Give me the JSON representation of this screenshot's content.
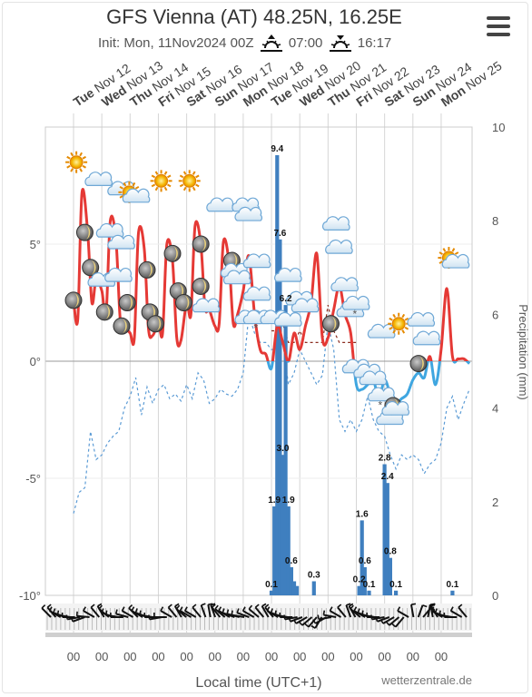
{
  "header": {
    "title": "GFS Vienna (AT) 48.25N, 16.25E",
    "init": "Init: Mon, 11Nov2024 00Z",
    "sunrise": "07:00",
    "sunset": "16:17"
  },
  "footer": {
    "xlabel": "Local time (UTC+1)",
    "credit": "wetterzentrale.de"
  },
  "colors": {
    "temp_warm": "#e53935",
    "temp_cold": "#3fa6e0",
    "precip": "#3f7fbf",
    "dewpoint": "#5b9bd5",
    "dewpoint_warm": "#8b2c1f"
  },
  "icons": [
    "sun-icon",
    "cloud-icon",
    "partly-cloudy-icon",
    "moon-icon",
    "snow-icon",
    "wind-barb-icon",
    "menu-icon"
  ],
  "chart_data": {
    "type": "line",
    "title": "GFS Vienna (AT) 48.25N, 16.25E",
    "xlabel": "Local time (UTC+1)",
    "ylabel_left": "",
    "ylabel_right": "Precipitation (mm)",
    "ylim_left": [
      -10,
      10
    ],
    "ylim_right": [
      0,
      10
    ],
    "yticks_left": [
      "5°",
      "0°",
      "-5°",
      "-10°"
    ],
    "yticks_right": [
      "10",
      "8",
      "6",
      "4",
      "2",
      "0"
    ],
    "days": [
      {
        "dow": "Tue",
        "date": "Nov 12"
      },
      {
        "dow": "Wed",
        "date": "Nov 13"
      },
      {
        "dow": "Thu",
        "date": "Nov 14"
      },
      {
        "dow": "Fri",
        "date": "Nov 15"
      },
      {
        "dow": "Sat",
        "date": "Nov 16"
      },
      {
        "dow": "Sun",
        "date": "Nov 17"
      },
      {
        "dow": "Mon",
        "date": "Nov 18"
      },
      {
        "dow": "Tue",
        "date": "Nov 19"
      },
      {
        "dow": "Wed",
        "date": "Nov 20"
      },
      {
        "dow": "Thu",
        "date": "Nov 21"
      },
      {
        "dow": "Fri",
        "date": "Nov 22"
      },
      {
        "dow": "Sat",
        "date": "Nov 23"
      },
      {
        "dow": "Sun",
        "date": "Nov 24"
      },
      {
        "dow": "Mon",
        "date": "Nov 25"
      }
    ],
    "x_tick_label": "00",
    "series": [
      {
        "name": "Temperature",
        "x_day": [
          0.0,
          0.15,
          0.3,
          0.5,
          0.65,
          0.8,
          1.0,
          1.15,
          1.3,
          1.5,
          1.65,
          1.8,
          2.0,
          2.15,
          2.3,
          2.5,
          2.65,
          2.8,
          3.0,
          3.15,
          3.3,
          3.5,
          3.65,
          3.8,
          4.0,
          4.15,
          4.3,
          4.5,
          4.65,
          4.8,
          5.0,
          5.15,
          5.3,
          5.5,
          5.65,
          5.8,
          6.0,
          6.2,
          6.4,
          6.6,
          6.8,
          7.0,
          7.2,
          7.4,
          7.6,
          7.8,
          8.0,
          8.2,
          8.4,
          8.6,
          8.8,
          9.0,
          9.2,
          9.4,
          9.6,
          9.8,
          10.0,
          10.2,
          10.4,
          10.6,
          10.8,
          11.0,
          11.2,
          11.4,
          11.6,
          11.8,
          12.0,
          12.2,
          12.4,
          12.6,
          12.8,
          13.0,
          13.2,
          13.4,
          13.6,
          13.8,
          14.0
        ],
        "values": [
          2.6,
          1.8,
          7.2,
          5.5,
          2.5,
          3.5,
          3.0,
          2.0,
          6.0,
          5.2,
          1.8,
          1.5,
          1.2,
          1.0,
          5.5,
          4.8,
          1.4,
          1.1,
          1.6,
          1.2,
          5.0,
          4.3,
          1.0,
          0.9,
          2.5,
          2.0,
          5.8,
          5.0,
          2.3,
          2.2,
          1.5,
          1.6,
          5.1,
          4.2,
          1.6,
          2.0,
          3.0,
          4.5,
          2.0,
          0.5,
          0.3,
          -0.3,
          1.5,
          0.8,
          0.0,
          1.2,
          0.5,
          1.5,
          2.5,
          4.6,
          1.0,
          1.0,
          2.2,
          3.2,
          2.0,
          1.2,
          -1.0,
          -1.2,
          -1.0,
          -0.8,
          -1.6,
          -0.8,
          -1.4,
          -1.8,
          -1.6,
          -1.4,
          -0.8,
          -0.5,
          -0.7,
          0.2,
          -1.0,
          0.5,
          3.1,
          0.2,
          0.1,
          0.1,
          -0.1
        ]
      },
      {
        "name": "Dew point",
        "x_day": [
          0.0,
          0.2,
          0.4,
          0.6,
          0.8,
          1.0,
          1.2,
          1.4,
          1.6,
          1.8,
          2.0,
          2.2,
          2.4,
          2.6,
          2.8,
          3.0,
          3.2,
          3.4,
          3.6,
          3.8,
          4.0,
          4.2,
          4.4,
          4.6,
          4.8,
          5.0,
          5.2,
          5.4,
          5.6,
          5.8,
          6.0,
          6.2,
          6.4,
          6.6,
          6.8,
          7.0,
          7.2,
          7.4,
          7.6,
          7.8,
          8.0,
          8.2,
          8.4,
          8.6,
          8.8,
          9.0,
          9.2,
          9.4,
          9.6,
          9.8,
          10.0,
          10.2,
          10.4,
          10.6,
          10.8,
          11.0,
          11.2,
          11.4,
          11.6,
          11.8,
          12.0,
          12.2,
          12.4,
          12.6,
          12.8,
          13.0,
          13.2,
          13.4,
          13.6,
          13.8,
          14.0
        ],
        "values": [
          -6.5,
          -5.6,
          -5.4,
          -3.0,
          -4.2,
          -4.0,
          -3.5,
          -3.2,
          -3.0,
          -2.0,
          -1.5,
          -0.7,
          -2.3,
          -1.1,
          -1.8,
          -1.2,
          -1.0,
          -1.6,
          -1.4,
          -1.7,
          -1.0,
          -1.6,
          -0.5,
          -0.8,
          -1.8,
          -1.6,
          -1.2,
          -1.4,
          -1.5,
          -1.2,
          -0.5,
          2.0,
          1.2,
          0.8,
          0.8,
          0.5,
          0.5,
          0.8,
          -1.0,
          -0.5,
          0.5,
          0.0,
          -0.5,
          -1.0,
          -0.6,
          1.6,
          0.5,
          -2.5,
          -3.0,
          -2.5,
          -3.0,
          -2.5,
          -1.5,
          -2.5,
          -3.0,
          -3.2,
          -4.0,
          -4.6,
          -4.0,
          -4.2,
          -4.0,
          -4.2,
          -4.8,
          -4.4,
          -4.2,
          -3.5,
          -2.0,
          -1.5,
          -2.5,
          -1.8,
          -1.2
        ],
        "warm_from_day": 7.0,
        "warm_to_day": 10.0
      }
    ],
    "precip_bars": [
      {
        "day": 7.0,
        "value": 0.1,
        "label": "0.1"
      },
      {
        "day": 7.1,
        "value": 1.9,
        "label": "1.9"
      },
      {
        "day": 7.2,
        "value": 9.4,
        "label": "9.4"
      },
      {
        "day": 7.3,
        "value": 7.6,
        "label": "7.6"
      },
      {
        "day": 7.4,
        "value": 3.0,
        "label": "3.0"
      },
      {
        "day": 7.5,
        "value": 6.2,
        "label": "6.2"
      },
      {
        "day": 7.6,
        "value": 1.9,
        "label": "1.9"
      },
      {
        "day": 7.7,
        "value": 0.6,
        "label": "0.6"
      },
      {
        "day": 7.8,
        "value": 0.3,
        "label": ""
      },
      {
        "day": 7.9,
        "value": 0.2,
        "label": ""
      },
      {
        "day": 8.5,
        "value": 0.3,
        "label": "0.3"
      },
      {
        "day": 10.1,
        "value": 0.2,
        "label": "0.2"
      },
      {
        "day": 10.2,
        "value": 1.6,
        "label": "1.6"
      },
      {
        "day": 10.3,
        "value": 0.6,
        "label": "0.6"
      },
      {
        "day": 10.45,
        "value": 0.1,
        "label": "0.1"
      },
      {
        "day": 11.0,
        "value": 2.8,
        "label": "2.8"
      },
      {
        "day": 11.1,
        "value": 2.4,
        "label": "2.4"
      },
      {
        "day": 11.2,
        "value": 0.8,
        "label": "0.8"
      },
      {
        "day": 11.4,
        "value": 0.1,
        "label": "0.1"
      },
      {
        "day": 13.4,
        "value": 0.1,
        "label": "0.1"
      }
    ],
    "weather_symbols": [
      {
        "day": 0.1,
        "temp": 8.5,
        "icon": "sun-icon"
      },
      {
        "day": 0.4,
        "temp": 5.5,
        "icon": "moon-icon"
      },
      {
        "day": 0.6,
        "temp": 4.0,
        "icon": "moon-icon"
      },
      {
        "day": 0.0,
        "temp": 2.6,
        "icon": "moon-icon"
      },
      {
        "day": 0.9,
        "temp": 7.7,
        "icon": "cloud-icon"
      },
      {
        "day": 1.3,
        "temp": 5.5,
        "icon": "cloud-icon"
      },
      {
        "day": 1.0,
        "temp": 3.4,
        "icon": "cloud-icon"
      },
      {
        "day": 1.1,
        "temp": 2.1,
        "icon": "moon-icon"
      },
      {
        "day": 1.7,
        "temp": 7.3,
        "icon": "cloud-icon"
      },
      {
        "day": 1.7,
        "temp": 5.0,
        "icon": "cloud-icon"
      },
      {
        "day": 1.6,
        "temp": 3.6,
        "icon": "cloud-icon"
      },
      {
        "day": 1.9,
        "temp": 2.5,
        "icon": "moon-icon"
      },
      {
        "day": 1.7,
        "temp": 1.5,
        "icon": "moon-icon"
      },
      {
        "day": 2.1,
        "temp": 7.1,
        "icon": "partly-cloudy-icon"
      },
      {
        "day": 2.6,
        "temp": 3.9,
        "icon": "moon-icon"
      },
      {
        "day": 2.7,
        "temp": 2.1,
        "icon": "moon-icon"
      },
      {
        "day": 2.9,
        "temp": 1.6,
        "icon": "moon-icon"
      },
      {
        "day": 3.1,
        "temp": 7.7,
        "icon": "sun-icon"
      },
      {
        "day": 3.5,
        "temp": 4.6,
        "icon": "moon-icon"
      },
      {
        "day": 3.7,
        "temp": 3.0,
        "icon": "moon-icon"
      },
      {
        "day": 3.9,
        "temp": 2.5,
        "icon": "moon-icon"
      },
      {
        "day": 4.1,
        "temp": 7.7,
        "icon": "sun-icon"
      },
      {
        "day": 4.5,
        "temp": 5.0,
        "icon": "moon-icon"
      },
      {
        "day": 4.5,
        "temp": 3.2,
        "icon": "moon-icon"
      },
      {
        "day": 4.7,
        "temp": 2.3,
        "icon": "cloud-icon"
      },
      {
        "day": 5.2,
        "temp": 6.6,
        "icon": "cloud-icon"
      },
      {
        "day": 5.6,
        "temp": 4.3,
        "icon": "moon-icon"
      },
      {
        "day": 5.7,
        "temp": 3.8,
        "icon": "cloud-icon"
      },
      {
        "day": 5.8,
        "temp": 3.5,
        "icon": "cloud-icon"
      },
      {
        "day": 6.1,
        "temp": 6.6,
        "icon": "cloud-icon"
      },
      {
        "day": 6.2,
        "temp": 6.2,
        "icon": "cloud-icon"
      },
      {
        "day": 6.5,
        "temp": 4.2,
        "icon": "cloud-icon"
      },
      {
        "day": 6.2,
        "temp": 1.8,
        "icon": "cloud-icon"
      },
      {
        "day": 6.5,
        "temp": 2.8,
        "icon": "cloud-icon"
      },
      {
        "day": 6.5,
        "temp": 1.8,
        "icon": "snow-icon"
      },
      {
        "day": 7.1,
        "temp": 1.8,
        "icon": "cloud-icon"
      },
      {
        "day": 7.6,
        "temp": 3.6,
        "icon": "cloud-icon"
      },
      {
        "day": 8.0,
        "temp": 2.6,
        "icon": "cloud-icon"
      },
      {
        "day": 8.2,
        "temp": 2.3,
        "icon": "cloud-icon"
      },
      {
        "day": 7.6,
        "temp": 1.7,
        "icon": "cloud-icon"
      },
      {
        "day": 9.1,
        "temp": 1.6,
        "icon": "moon-icon"
      },
      {
        "day": 9.3,
        "temp": 5.8,
        "icon": "cloud-icon"
      },
      {
        "day": 9.4,
        "temp": 4.8,
        "icon": "cloud-icon"
      },
      {
        "day": 9.6,
        "temp": 3.2,
        "icon": "cloud-icon"
      },
      {
        "day": 9.8,
        "temp": 2.1,
        "icon": "cloud-icon"
      },
      {
        "day": 10.0,
        "temp": 2.4,
        "icon": "snow-icon"
      },
      {
        "day": 10.0,
        "temp": -0.3,
        "icon": "cloud-icon"
      },
      {
        "day": 10.4,
        "temp": -0.5,
        "icon": "cloud-icon"
      },
      {
        "day": 10.6,
        "temp": -0.8,
        "icon": "cloud-icon"
      },
      {
        "day": 10.9,
        "temp": 1.2,
        "icon": "cloud-icon"
      },
      {
        "day": 10.9,
        "temp": -1.5,
        "icon": "snow-icon"
      },
      {
        "day": 11.2,
        "temp": -2.5,
        "icon": "cloud-icon"
      },
      {
        "day": 11.3,
        "temp": -1.9,
        "icon": "moon-icon"
      },
      {
        "day": 11.4,
        "temp": -2.1,
        "icon": "cloud-icon"
      },
      {
        "day": 11.5,
        "temp": 1.6,
        "icon": "sun-icon"
      },
      {
        "day": 12.3,
        "temp": 1.7,
        "icon": "cloud-icon"
      },
      {
        "day": 12.2,
        "temp": -0.1,
        "icon": "moon-icon"
      },
      {
        "day": 12.5,
        "temp": 0.9,
        "icon": "cloud-icon"
      },
      {
        "day": 13.4,
        "temp": 4.3,
        "icon": "partly-cloudy-icon"
      }
    ],
    "wind_dirs_deg": [
      315,
      320,
      300,
      290,
      280,
      270,
      260,
      250,
      275,
      300,
      320,
      330,
      310,
      290,
      280,
      270,
      285,
      300,
      315,
      300,
      290,
      280,
      270,
      260,
      270,
      300,
      320,
      330,
      310,
      300,
      300,
      320,
      340,
      350,
      340,
      320,
      310,
      300,
      290,
      285,
      280,
      290,
      300,
      310,
      320,
      330,
      320,
      300,
      290,
      280,
      270,
      260,
      250,
      240,
      230,
      220,
      210,
      240,
      260,
      280,
      300,
      320,
      340,
      330,
      310,
      300,
      290,
      280,
      270,
      260,
      250,
      240,
      230,
      220,
      300,
      350,
      20,
      40,
      10,
      350,
      330,
      300,
      290,
      280,
      270,
      300,
      320
    ]
  }
}
